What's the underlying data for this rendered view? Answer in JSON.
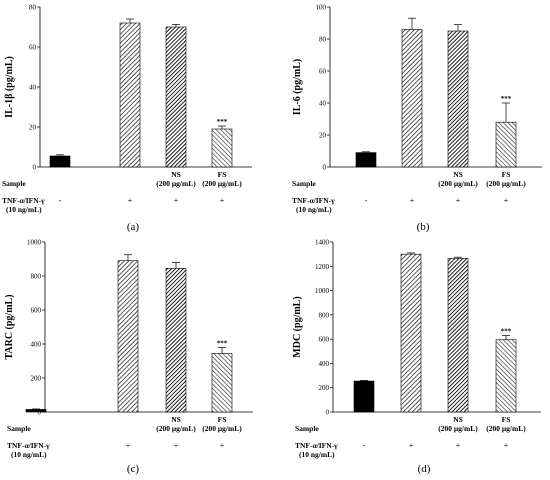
{
  "chart_data": [
    {
      "type": "bar",
      "panel_label": "(a)",
      "ylabel": "IL-1β (pg/mL)",
      "ylim": [
        0,
        80
      ],
      "yticks": [
        0,
        20,
        40,
        60,
        80
      ],
      "groups": [
        "",
        "",
        "NS",
        "FS"
      ],
      "group_doses": [
        "",
        "",
        "(200 μg/mL)",
        "(200 μg/mL)"
      ],
      "values": [
        5.5,
        72,
        70,
        19
      ],
      "errors": [
        0.6,
        2,
        1.3,
        1.5
      ],
      "bar_styles": [
        "solid",
        "hatch-right",
        "hatch-dark",
        "hatch-left"
      ],
      "significance": [
        "",
        "",
        "",
        "***"
      ],
      "row1_label": "Sample",
      "row2_label": "TNF-α/IFN-γ",
      "row2_dose": "(10 ng/mL)",
      "treatment_signs": [
        "-",
        "+",
        "+",
        "+"
      ]
    },
    {
      "type": "bar",
      "panel_label": "(b)",
      "ylabel": "IL-6 (pg/mL)",
      "ylim": [
        0,
        100
      ],
      "yticks": [
        0,
        20,
        40,
        60,
        80,
        100
      ],
      "groups": [
        "",
        "",
        "NS",
        "FS"
      ],
      "group_doses": [
        "",
        "",
        "(200 μg/mL)",
        "(200 μg/mL)"
      ],
      "values": [
        9,
        86,
        85,
        28
      ],
      "errors": [
        0.5,
        7,
        4,
        12
      ],
      "bar_styles": [
        "solid",
        "hatch-right",
        "hatch-dark",
        "hatch-left"
      ],
      "significance": [
        "",
        "",
        "",
        "***"
      ],
      "row1_label": "Sample",
      "row2_label": "TNF-α/IFN-γ",
      "row2_dose": "(10 ng/mL)",
      "treatment_signs": [
        "-",
        "+",
        "+",
        "+"
      ]
    },
    {
      "type": "bar",
      "panel_label": "(c)",
      "ylabel": "TARC (pg/mL)",
      "ylim": [
        0,
        1000
      ],
      "yticks": [
        0,
        200,
        400,
        600,
        800,
        1000
      ],
      "groups": [
        "",
        "",
        "NS",
        "FS"
      ],
      "group_doses": [
        "",
        "",
        "(200 μg/mL)",
        "(200 μg/mL)"
      ],
      "values": [
        15,
        890,
        845,
        345
      ],
      "errors": [
        3,
        35,
        35,
        35
      ],
      "bar_styles": [
        "solid",
        "hatch-right",
        "hatch-dark",
        "hatch-left"
      ],
      "significance": [
        "",
        "",
        "",
        "***"
      ],
      "row1_label": "Sample",
      "row2_label": "TNF-α/IFN-γ",
      "row2_dose": "(10 ng/mL)",
      "treatment_signs": [
        "-",
        "+",
        "+",
        "+"
      ]
    },
    {
      "type": "bar",
      "panel_label": "(d)",
      "ylabel": "MDC (pg/mL)",
      "ylim": [
        0,
        1400
      ],
      "yticks": [
        0,
        200,
        400,
        600,
        800,
        1000,
        1200,
        1400
      ],
      "groups": [
        "",
        "",
        "NS",
        "FS"
      ],
      "group_doses": [
        "",
        "",
        "(200 μg/mL)",
        "(200 μg/mL)"
      ],
      "values": [
        255,
        1300,
        1265,
        595
      ],
      "errors": [
        5,
        10,
        10,
        35
      ],
      "bar_styles": [
        "solid",
        "hatch-right",
        "hatch-dark",
        "hatch-left"
      ],
      "significance": [
        "",
        "",
        "",
        "***"
      ],
      "row1_label": "Sample",
      "row2_label": "TNF-α/IFN-γ",
      "row2_dose": "(10 ng/mL)",
      "treatment_signs": [
        "-",
        "+",
        "+",
        "+"
      ]
    }
  ]
}
